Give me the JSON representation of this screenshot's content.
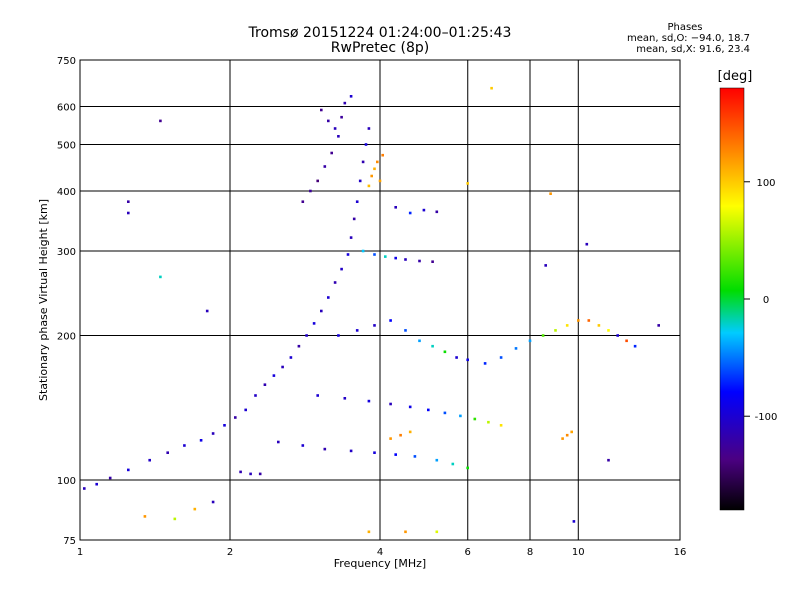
{
  "header": {
    "title_line1": "Tromsø 20151224 01:24:00–01:25:43",
    "title_line2": "RwPretec (8p)",
    "phases_title": "Phases",
    "phases_line_o": "mean, sd,O:  −94.0, 18.7",
    "phases_line_x": "mean, sd,X:  91.6, 23.4"
  },
  "chart_data": {
    "type": "scatter",
    "xlabel": "Frequency [MHz]",
    "ylabel": "Stationary phase Virtual Height [km]",
    "x_scale": "log",
    "y_scale": "log",
    "xlim": [
      1,
      16
    ],
    "ylim": [
      75,
      750
    ],
    "x_ticks": [
      1,
      2,
      4,
      6,
      8,
      10,
      16
    ],
    "y_ticks": [
      75,
      100,
      200,
      300,
      400,
      500,
      600,
      750
    ],
    "grid": true,
    "colorbar": {
      "label": "[deg]",
      "range": [
        -180,
        180
      ],
      "ticks": [
        100,
        0,
        -100
      ]
    },
    "series": [
      {
        "values": [
          {
            "x": 1.02,
            "y": 96,
            "p": -110
          },
          {
            "x": 1.08,
            "y": 98,
            "p": -100
          },
          {
            "x": 1.15,
            "y": 101,
            "p": -120
          },
          {
            "x": 1.25,
            "y": 105,
            "p": -95
          },
          {
            "x": 1.38,
            "y": 110,
            "p": -105
          },
          {
            "x": 1.5,
            "y": 114,
            "p": -115
          },
          {
            "x": 1.62,
            "y": 118,
            "p": -100
          },
          {
            "x": 1.75,
            "y": 121,
            "p": -90
          },
          {
            "x": 1.85,
            "y": 125,
            "p": -110
          },
          {
            "x": 1.95,
            "y": 130,
            "p": -95
          },
          {
            "x": 2.05,
            "y": 135,
            "p": -120
          },
          {
            "x": 2.15,
            "y": 140,
            "p": -100
          },
          {
            "x": 2.25,
            "y": 150,
            "p": -105
          },
          {
            "x": 2.35,
            "y": 158,
            "p": -115
          },
          {
            "x": 2.45,
            "y": 165,
            "p": -95
          },
          {
            "x": 2.55,
            "y": 172,
            "p": -110
          },
          {
            "x": 2.65,
            "y": 180,
            "p": -100
          },
          {
            "x": 2.75,
            "y": 190,
            "p": -120
          },
          {
            "x": 2.85,
            "y": 200,
            "p": -105
          },
          {
            "x": 2.95,
            "y": 212,
            "p": -95
          },
          {
            "x": 3.05,
            "y": 225,
            "p": -110
          },
          {
            "x": 3.15,
            "y": 240,
            "p": -100
          },
          {
            "x": 3.25,
            "y": 258,
            "p": -115
          },
          {
            "x": 3.35,
            "y": 275,
            "p": -105
          },
          {
            "x": 3.45,
            "y": 295,
            "p": -95
          },
          {
            "x": 3.5,
            "y": 320,
            "p": -110
          },
          {
            "x": 3.55,
            "y": 350,
            "p": -120
          },
          {
            "x": 3.6,
            "y": 380,
            "p": -100
          },
          {
            "x": 3.65,
            "y": 420,
            "p": -105
          },
          {
            "x": 3.7,
            "y": 460,
            "p": -115
          },
          {
            "x": 3.75,
            "y": 500,
            "p": -95
          },
          {
            "x": 3.8,
            "y": 540,
            "p": -110
          },
          {
            "x": 2.8,
            "y": 380,
            "p": -130
          },
          {
            "x": 2.9,
            "y": 400,
            "p": -125
          },
          {
            "x": 3.0,
            "y": 420,
            "p": -140
          },
          {
            "x": 3.1,
            "y": 450,
            "p": -120
          },
          {
            "x": 3.2,
            "y": 480,
            "p": -130
          },
          {
            "x": 3.3,
            "y": 520,
            "p": -110
          },
          {
            "x": 3.35,
            "y": 570,
            "p": -125
          },
          {
            "x": 3.4,
            "y": 610,
            "p": -115
          },
          {
            "x": 3.5,
            "y": 630,
            "p": -100
          },
          {
            "x": 3.05,
            "y": 590,
            "p": -130
          },
          {
            "x": 3.15,
            "y": 560,
            "p": -120
          },
          {
            "x": 3.25,
            "y": 540,
            "p": -110
          },
          {
            "x": 3.85,
            "y": 430,
            "p": 120
          },
          {
            "x": 3.9,
            "y": 445,
            "p": 110
          },
          {
            "x": 3.95,
            "y": 460,
            "p": 125
          },
          {
            "x": 4.0,
            "y": 420,
            "p": 115
          },
          {
            "x": 3.8,
            "y": 410,
            "p": 105
          },
          {
            "x": 4.05,
            "y": 475,
            "p": 130
          },
          {
            "x": 3.3,
            "y": 200,
            "p": -95
          },
          {
            "x": 3.6,
            "y": 205,
            "p": -100
          },
          {
            "x": 3.9,
            "y": 210,
            "p": -105
          },
          {
            "x": 4.2,
            "y": 215,
            "p": -80
          },
          {
            "x": 4.5,
            "y": 205,
            "p": -60
          },
          {
            "x": 4.8,
            "y": 195,
            "p": -40
          },
          {
            "x": 5.1,
            "y": 190,
            "p": -20
          },
          {
            "x": 5.4,
            "y": 185,
            "p": 10
          },
          {
            "x": 5.7,
            "y": 180,
            "p": -100
          },
          {
            "x": 6.0,
            "y": 178,
            "p": -90
          },
          {
            "x": 6.5,
            "y": 175,
            "p": -70
          },
          {
            "x": 7.0,
            "y": 180,
            "p": -60
          },
          {
            "x": 7.5,
            "y": 188,
            "p": -50
          },
          {
            "x": 8.0,
            "y": 195,
            "p": -40
          },
          {
            "x": 8.5,
            "y": 200,
            "p": 30
          },
          {
            "x": 9.0,
            "y": 205,
            "p": 60
          },
          {
            "x": 9.5,
            "y": 210,
            "p": 90
          },
          {
            "x": 10.0,
            "y": 215,
            "p": 120
          },
          {
            "x": 10.5,
            "y": 215,
            "p": 140
          },
          {
            "x": 11.0,
            "y": 210,
            "p": 100
          },
          {
            "x": 11.5,
            "y": 205,
            "p": 80
          },
          {
            "x": 12.0,
            "y": 200,
            "p": -100
          },
          {
            "x": 12.5,
            "y": 195,
            "p": 150
          },
          {
            "x": 13.0,
            "y": 190,
            "p": -70
          },
          {
            "x": 14.5,
            "y": 210,
            "p": -120
          },
          {
            "x": 3.0,
            "y": 150,
            "p": -100
          },
          {
            "x": 3.4,
            "y": 148,
            "p": -105
          },
          {
            "x": 3.8,
            "y": 146,
            "p": -95
          },
          {
            "x": 4.2,
            "y": 144,
            "p": -110
          },
          {
            "x": 4.6,
            "y": 142,
            "p": -90
          },
          {
            "x": 5.0,
            "y": 140,
            "p": -80
          },
          {
            "x": 5.4,
            "y": 138,
            "p": -60
          },
          {
            "x": 5.8,
            "y": 136,
            "p": -40
          },
          {
            "x": 6.2,
            "y": 134,
            "p": 20
          },
          {
            "x": 6.6,
            "y": 132,
            "p": 60
          },
          {
            "x": 7.0,
            "y": 130,
            "p": 90
          },
          {
            "x": 2.5,
            "y": 120,
            "p": -110
          },
          {
            "x": 2.8,
            "y": 118,
            "p": -100
          },
          {
            "x": 3.1,
            "y": 116,
            "p": -115
          },
          {
            "x": 3.5,
            "y": 115,
            "p": -105
          },
          {
            "x": 3.9,
            "y": 114,
            "p": -95
          },
          {
            "x": 4.3,
            "y": 113,
            "p": -80
          },
          {
            "x": 4.7,
            "y": 112,
            "p": -60
          },
          {
            "x": 5.2,
            "y": 110,
            "p": -40
          },
          {
            "x": 5.6,
            "y": 108,
            "p": -20
          },
          {
            "x": 6.0,
            "y": 106,
            "p": 10
          },
          {
            "x": 2.1,
            "y": 104,
            "p": -115
          },
          {
            "x": 2.2,
            "y": 103,
            "p": -110
          },
          {
            "x": 2.3,
            "y": 103,
            "p": -120
          },
          {
            "x": 4.2,
            "y": 122,
            "p": 120
          },
          {
            "x": 4.4,
            "y": 124,
            "p": 130
          },
          {
            "x": 4.6,
            "y": 126,
            "p": 110
          },
          {
            "x": 9.3,
            "y": 122,
            "p": 120
          },
          {
            "x": 9.5,
            "y": 124,
            "p": 125
          },
          {
            "x": 9.7,
            "y": 126,
            "p": 115
          },
          {
            "x": 3.7,
            "y": 300,
            "p": -30
          },
          {
            "x": 3.9,
            "y": 295,
            "p": -60
          },
          {
            "x": 4.1,
            "y": 292,
            "p": -20
          },
          {
            "x": 4.3,
            "y": 290,
            "p": -90
          },
          {
            "x": 4.5,
            "y": 288,
            "p": -110
          },
          {
            "x": 4.8,
            "y": 286,
            "p": -120
          },
          {
            "x": 5.1,
            "y": 285,
            "p": -130
          },
          {
            "x": 4.3,
            "y": 370,
            "p": -110
          },
          {
            "x": 4.6,
            "y": 360,
            "p": -70
          },
          {
            "x": 4.9,
            "y": 365,
            "p": -100
          },
          {
            "x": 5.2,
            "y": 362,
            "p": -120
          },
          {
            "x": 1.25,
            "y": 380,
            "p": -120
          },
          {
            "x": 1.25,
            "y": 360,
            "p": -110
          },
          {
            "x": 1.45,
            "y": 560,
            "p": -130
          },
          {
            "x": 1.45,
            "y": 265,
            "p": -20
          },
          {
            "x": 1.8,
            "y": 225,
            "p": -110
          },
          {
            "x": 1.7,
            "y": 87,
            "p": 110
          },
          {
            "x": 1.85,
            "y": 90,
            "p": -110
          },
          {
            "x": 1.55,
            "y": 83,
            "p": 60
          },
          {
            "x": 1.35,
            "y": 84,
            "p": 120
          },
          {
            "x": 6.7,
            "y": 655,
            "p": 100
          },
          {
            "x": 6.0,
            "y": 415,
            "p": 100
          },
          {
            "x": 8.8,
            "y": 395,
            "p": 120
          },
          {
            "x": 10.4,
            "y": 310,
            "p": -110
          },
          {
            "x": 8.6,
            "y": 280,
            "p": -110
          },
          {
            "x": 3.8,
            "y": 78,
            "p": 110
          },
          {
            "x": 4.5,
            "y": 78,
            "p": 120
          },
          {
            "x": 5.2,
            "y": 78,
            "p": 70
          },
          {
            "x": 9.8,
            "y": 82,
            "p": -100
          },
          {
            "x": 11.5,
            "y": 110,
            "p": -120
          }
        ]
      }
    ]
  }
}
